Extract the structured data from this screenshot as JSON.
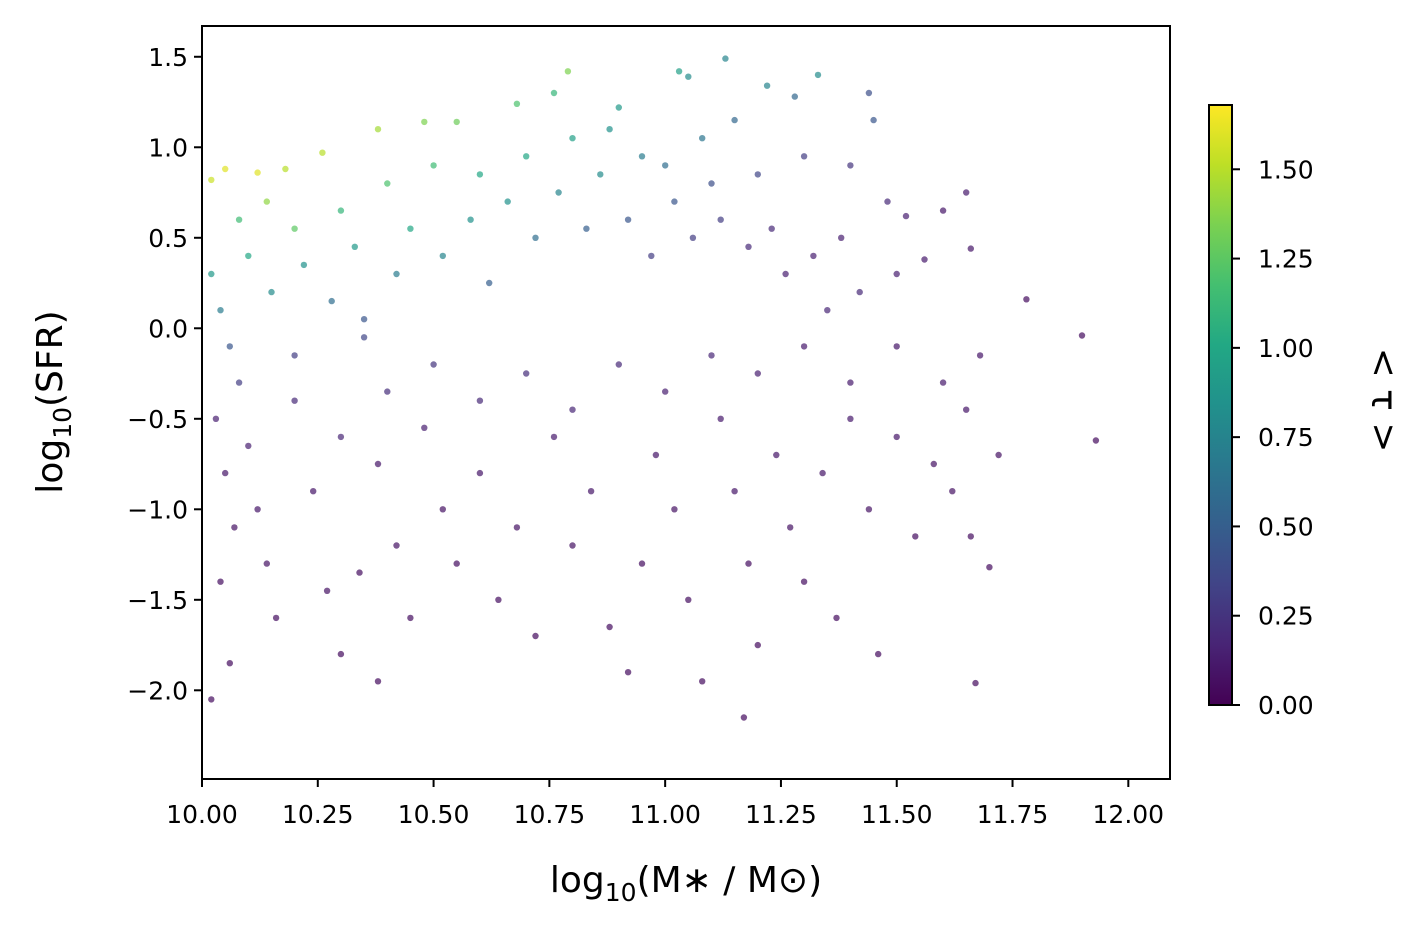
{
  "chart_data": {
    "type": "scatter",
    "xlabel": {
      "prefix": "log",
      "sub": "10",
      "suffix": "(M∗ / M⊙)"
    },
    "ylabel": {
      "prefix": "log",
      "sub": "10",
      "suffix": "(SFR)"
    },
    "colorbar_label": "< τ >",
    "xlim": [
      10.0,
      12.09
    ],
    "ylim": [
      -2.49,
      1.67
    ],
    "x_ticks": [
      10.0,
      10.25,
      10.5,
      10.75,
      11.0,
      11.25,
      11.5,
      11.75,
      12.0
    ],
    "x_tick_labels": [
      "10.00",
      "10.25",
      "10.50",
      "10.75",
      "11.00",
      "11.25",
      "11.50",
      "11.75",
      "12.00"
    ],
    "y_ticks": [
      1.5,
      1.0,
      0.5,
      0.0,
      -0.5,
      -1.0,
      -1.5,
      -2.0
    ],
    "y_tick_labels": [
      "1.5",
      "1.0",
      "0.5",
      "0.0",
      "−0.5",
      "−1.0",
      "−1.5",
      "−2.0"
    ],
    "colorbar": {
      "colormap": "viridis",
      "range": [
        0.0,
        1.68
      ],
      "ticks": [
        0.0,
        0.25,
        0.5,
        0.75,
        1.0,
        1.25,
        1.5
      ],
      "tick_labels": [
        "0.00",
        "0.25",
        "0.50",
        "0.75",
        "1.00",
        "1.25",
        "1.50"
      ]
    },
    "grid": false,
    "marker_alpha": 0.7,
    "floor_value": -2.3,
    "points": [
      [
        10.02,
        0.82,
        1.55
      ],
      [
        10.05,
        0.88,
        1.6
      ],
      [
        10.12,
        0.86,
        1.6
      ],
      [
        10.18,
        0.88,
        1.5
      ],
      [
        10.26,
        0.97,
        1.5
      ],
      [
        10.38,
        1.1,
        1.45
      ],
      [
        10.48,
        1.14,
        1.35
      ],
      [
        10.55,
        1.14,
        1.3
      ],
      [
        10.68,
        1.24,
        1.2
      ],
      [
        10.79,
        1.42,
        1.35
      ],
      [
        10.76,
        1.3,
        1.1
      ],
      [
        10.9,
        1.22,
        0.9
      ],
      [
        11.03,
        1.42,
        0.95
      ],
      [
        11.05,
        1.39,
        0.8
      ],
      [
        11.13,
        1.49,
        0.75
      ],
      [
        11.22,
        1.34,
        0.75
      ],
      [
        11.33,
        1.4,
        0.8
      ],
      [
        11.28,
        1.28,
        0.55
      ],
      [
        11.44,
        1.3,
        0.4
      ],
      [
        11.45,
        1.15,
        0.45
      ],
      [
        10.08,
        0.6,
        1.15
      ],
      [
        10.14,
        0.7,
        1.4
      ],
      [
        10.2,
        0.55,
        1.25
      ],
      [
        10.3,
        0.65,
        1.1
      ],
      [
        10.4,
        0.8,
        1.2
      ],
      [
        10.5,
        0.9,
        1.15
      ],
      [
        10.6,
        0.85,
        1.0
      ],
      [
        10.7,
        0.95,
        1.0
      ],
      [
        10.8,
        1.05,
        0.95
      ],
      [
        10.88,
        1.1,
        0.85
      ],
      [
        10.95,
        0.95,
        0.7
      ],
      [
        11.0,
        0.9,
        0.6
      ],
      [
        11.08,
        1.05,
        0.65
      ],
      [
        11.15,
        1.15,
        0.55
      ],
      [
        11.1,
        0.8,
        0.4
      ],
      [
        11.2,
        0.85,
        0.35
      ],
      [
        11.3,
        0.95,
        0.3
      ],
      [
        11.4,
        0.9,
        0.25
      ],
      [
        11.48,
        0.7,
        0.2
      ],
      [
        11.52,
        0.62,
        0.15
      ],
      [
        11.65,
        0.75,
        0.12
      ],
      [
        11.6,
        0.65,
        0.1
      ],
      [
        11.78,
        0.16,
        0.05
      ],
      [
        11.9,
        -0.04,
        0.05
      ],
      [
        11.93,
        -0.62,
        0.05
      ],
      [
        11.66,
        0.44,
        0.1
      ],
      [
        11.56,
        0.38,
        0.12
      ],
      [
        11.5,
        0.3,
        0.15
      ],
      [
        11.42,
        0.2,
        0.2
      ],
      [
        11.35,
        0.1,
        0.18
      ],
      [
        10.02,
        0.3,
        0.9
      ],
      [
        10.04,
        0.1,
        0.7
      ],
      [
        10.06,
        -0.1,
        0.45
      ],
      [
        10.08,
        -0.3,
        0.3
      ],
      [
        10.1,
        0.4,
        1.0
      ],
      [
        10.15,
        0.2,
        0.8
      ],
      [
        10.22,
        0.35,
        0.85
      ],
      [
        10.28,
        0.15,
        0.6
      ],
      [
        10.33,
        0.45,
        0.9
      ],
      [
        10.35,
        0.05,
        0.45
      ],
      [
        10.42,
        0.3,
        0.7
      ],
      [
        10.45,
        0.55,
        1.0
      ],
      [
        10.52,
        0.4,
        0.75
      ],
      [
        10.58,
        0.6,
        0.85
      ],
      [
        10.62,
        0.25,
        0.5
      ],
      [
        10.66,
        0.7,
        0.85
      ],
      [
        10.72,
        0.5,
        0.6
      ],
      [
        10.77,
        0.75,
        0.75
      ],
      [
        10.83,
        0.55,
        0.5
      ],
      [
        10.86,
        0.85,
        0.8
      ],
      [
        10.92,
        0.6,
        0.45
      ],
      [
        10.97,
        0.4,
        0.3
      ],
      [
        11.02,
        0.7,
        0.45
      ],
      [
        11.06,
        0.5,
        0.3
      ],
      [
        11.12,
        0.6,
        0.3
      ],
      [
        11.18,
        0.45,
        0.2
      ],
      [
        11.23,
        0.55,
        0.2
      ],
      [
        11.26,
        0.3,
        0.15
      ],
      [
        11.32,
        0.4,
        0.15
      ],
      [
        11.38,
        0.5,
        0.15
      ],
      [
        10.03,
        -0.5,
        0.15
      ],
      [
        10.05,
        -0.8,
        0.1
      ],
      [
        10.07,
        -1.1,
        0.08
      ],
      [
        10.04,
        -1.4,
        0.06
      ],
      [
        10.06,
        -1.85,
        0.05
      ],
      [
        10.02,
        -2.05,
        0.05
      ],
      [
        10.1,
        -0.65,
        0.15
      ],
      [
        10.12,
        -1.0,
        0.1
      ],
      [
        10.14,
        -1.3,
        0.08
      ],
      [
        10.16,
        -1.6,
        0.06
      ],
      [
        10.2,
        -0.4,
        0.2
      ],
      [
        10.24,
        -0.9,
        0.1
      ],
      [
        10.27,
        -1.45,
        0.08
      ],
      [
        10.3,
        -1.8,
        0.05
      ],
      [
        10.34,
        -1.35,
        0.06
      ],
      [
        10.38,
        -0.75,
        0.1
      ],
      [
        10.42,
        -1.2,
        0.08
      ],
      [
        10.45,
        -1.6,
        0.06
      ],
      [
        10.38,
        -1.95,
        0.05
      ],
      [
        10.48,
        -0.55,
        0.15
      ],
      [
        10.52,
        -1.0,
        0.08
      ],
      [
        10.55,
        -1.3,
        0.06
      ],
      [
        10.6,
        -0.8,
        0.1
      ],
      [
        10.64,
        -1.5,
        0.06
      ],
      [
        10.68,
        -1.1,
        0.08
      ],
      [
        10.72,
        -1.7,
        0.05
      ],
      [
        10.76,
        -0.6,
        0.12
      ],
      [
        10.8,
        -1.2,
        0.08
      ],
      [
        10.84,
        -0.9,
        0.1
      ],
      [
        10.88,
        -1.65,
        0.06
      ],
      [
        10.92,
        -1.9,
        0.05
      ],
      [
        10.95,
        -1.3,
        0.06
      ],
      [
        10.98,
        -0.7,
        0.1
      ],
      [
        11.02,
        -1.0,
        0.08
      ],
      [
        11.05,
        -1.5,
        0.06
      ],
      [
        11.08,
        -1.95,
        0.05
      ],
      [
        11.12,
        -0.5,
        0.12
      ],
      [
        11.15,
        -0.9,
        0.1
      ],
      [
        11.18,
        -1.3,
        0.06
      ],
      [
        11.2,
        -1.75,
        0.05
      ],
      [
        11.17,
        -2.15,
        0.05
      ],
      [
        11.24,
        -0.7,
        0.1
      ],
      [
        11.27,
        -1.1,
        0.08
      ],
      [
        11.3,
        -1.4,
        0.06
      ],
      [
        11.34,
        -0.8,
        0.1
      ],
      [
        11.37,
        -1.6,
        0.05
      ],
      [
        11.4,
        -0.5,
        0.12
      ],
      [
        11.44,
        -1.0,
        0.08
      ],
      [
        11.46,
        -1.8,
        0.05
      ],
      [
        11.5,
        -0.6,
        0.1
      ],
      [
        11.54,
        -1.15,
        0.06
      ],
      [
        11.58,
        -0.75,
        0.08
      ],
      [
        11.62,
        -0.9,
        0.08
      ],
      [
        11.65,
        -0.45,
        0.1
      ],
      [
        11.66,
        -1.15,
        0.06
      ],
      [
        11.68,
        -0.15,
        0.1
      ],
      [
        11.7,
        -1.32,
        0.05
      ],
      [
        11.67,
        -1.96,
        0.05
      ],
      [
        11.72,
        -0.7,
        0.08
      ],
      [
        11.6,
        -0.3,
        0.12
      ],
      [
        10.5,
        -0.2,
        0.25
      ],
      [
        10.6,
        -0.4,
        0.2
      ],
      [
        10.7,
        -0.25,
        0.22
      ],
      [
        10.8,
        -0.45,
        0.18
      ],
      [
        10.9,
        -0.2,
        0.2
      ],
      [
        11.0,
        -0.35,
        0.15
      ],
      [
        11.1,
        -0.15,
        0.18
      ],
      [
        11.2,
        -0.25,
        0.15
      ],
      [
        11.3,
        -0.1,
        0.12
      ],
      [
        11.4,
        -0.3,
        0.12
      ],
      [
        11.5,
        -0.1,
        0.1
      ],
      [
        10.4,
        -0.35,
        0.22
      ],
      [
        10.3,
        -0.6,
        0.18
      ],
      [
        10.2,
        -0.15,
        0.3
      ],
      [
        10.35,
        -0.05,
        0.35
      ]
    ]
  }
}
